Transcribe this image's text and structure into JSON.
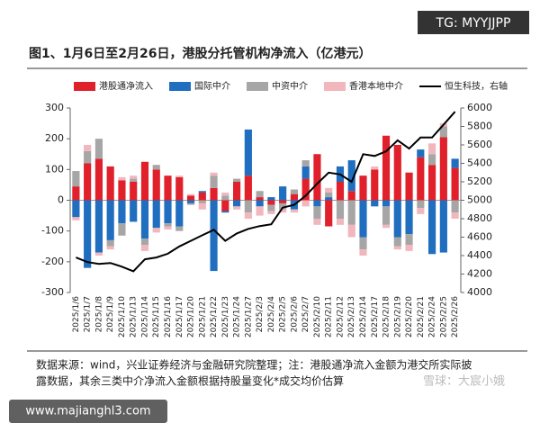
{
  "chart_data": {
    "type": "bar",
    "stacked": true,
    "title": "图1、1月6日至2月26日，港股分托管机构净流入（亿港元）",
    "categories": [
      "2025/1/6",
      "2025/1/7",
      "2025/1/8",
      "2025/1/9",
      "2025/1/10",
      "2025/1/13",
      "2025/1/14",
      "2025/1/15",
      "2025/1/16",
      "2025/1/17",
      "2025/1/20",
      "2025/1/21",
      "2025/1/22",
      "2025/1/23",
      "2025/1/24",
      "2025/1/27",
      "2025/2/3",
      "2025/2/4",
      "2025/2/5",
      "2025/2/6",
      "2025/2/7",
      "2025/2/10",
      "2025/2/11",
      "2025/2/12",
      "2025/2/13",
      "2025/2/14",
      "2025/2/17",
      "2025/2/18",
      "2025/2/19",
      "2025/2/20",
      "2025/2/21",
      "2025/2/24",
      "2025/2/25",
      "2025/2/26"
    ],
    "series": [
      {
        "name": "港股通净流入",
        "color": "#e0202a",
        "values": [
          45,
          120,
          135,
          110,
          65,
          60,
          125,
          100,
          80,
          75,
          15,
          25,
          40,
          -35,
          60,
          80,
          10,
          -15,
          -10,
          20,
          70,
          150,
          -85,
          60,
          30,
          80,
          100,
          210,
          180,
          90,
          140,
          115,
          205,
          105
        ]
      },
      {
        "name": "国际中介",
        "color": "#1f6ec0",
        "values": [
          -55,
          -220,
          -170,
          -130,
          -75,
          -70,
          -125,
          -90,
          -75,
          -85,
          -10,
          5,
          -230,
          -5,
          -20,
          150,
          -20,
          10,
          45,
          -30,
          40,
          -20,
          10,
          50,
          100,
          -120,
          -20,
          -20,
          -120,
          -110,
          25,
          -175,
          -170,
          30
        ]
      },
      {
        "name": "中资中介",
        "color": "#a6a6a6",
        "values": [
          50,
          40,
          65,
          -20,
          -40,
          10,
          -20,
          15,
          -10,
          -15,
          -5,
          -10,
          40,
          15,
          10,
          -40,
          20,
          -20,
          -20,
          15,
          20,
          -40,
          15,
          -60,
          -80,
          -40,
          0,
          -60,
          -30,
          -35,
          -25,
          35,
          35,
          -40
        ]
      },
      {
        "name": "香港本地中介",
        "color": "#f2b6bd",
        "values": [
          -10,
          20,
          -10,
          -10,
          10,
          10,
          -20,
          -15,
          -10,
          5,
          5,
          -20,
          10,
          10,
          -10,
          -20,
          -30,
          -10,
          -10,
          -10,
          -20,
          -20,
          15,
          -20,
          -40,
          -20,
          10,
          -10,
          -10,
          -20,
          -20,
          35,
          10,
          -20
        ]
      },
      {
        "name": "恒生科技，右轴",
        "color": "#000000",
        "type": "line",
        "axis": "y2",
        "values": [
          4380,
          4330,
          4310,
          4320,
          4280,
          4230,
          4360,
          4380,
          4420,
          4500,
          4560,
          4620,
          4680,
          4560,
          4640,
          4690,
          4720,
          4740,
          4920,
          4950,
          5050,
          5180,
          5300,
          5280,
          5200,
          5500,
          5480,
          5530,
          5650,
          5560,
          5680,
          5680,
          5820,
          5960
        ]
      }
    ],
    "ylim": [
      -300,
      300
    ],
    "yticks": [
      -300,
      -200,
      -100,
      0,
      100,
      200,
      300
    ],
    "y2lim": [
      4000,
      6000
    ],
    "y2ticks": [
      4000,
      4200,
      4400,
      4600,
      4800,
      5000,
      5200,
      5400,
      5600,
      5800,
      6000
    ],
    "legend": "top",
    "grid": false
  },
  "source": [
    "数据来源：wind，兴业证券经济与金融研究院整理；注：港股通净流入金额为港交所实际披",
    "露数据，其余三类中介净流入金额根据持股量变化*成交均价估算"
  ],
  "watermarks": [
    "TG: MYYJJPP",
    "www.majianghl3.com",
    "雪球：大宸小娥"
  ]
}
